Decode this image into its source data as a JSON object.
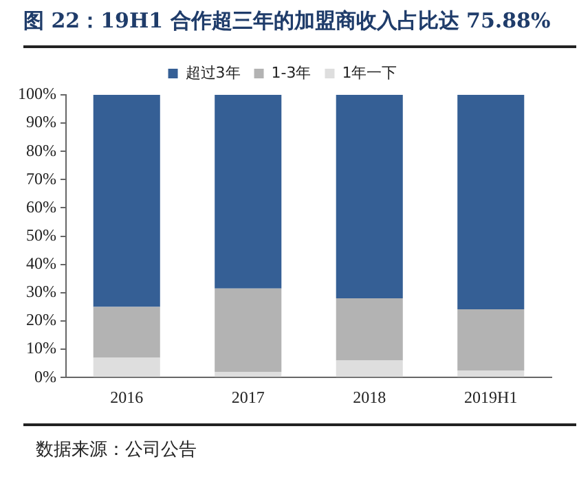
{
  "chart_data": {
    "type": "bar",
    "stacked": true,
    "title": "图 22：19H1 合作超三年的加盟商收入占比达 75.88%",
    "categories": [
      "2016",
      "2017",
      "2018",
      "2019H1"
    ],
    "series": [
      {
        "name": "1年一下",
        "color": "#dedede",
        "values": [
          7,
          2,
          6,
          2.5
        ]
      },
      {
        "name": "1-3年",
        "color": "#b3b3b3",
        "values": [
          18,
          29.5,
          22,
          21.62
        ]
      },
      {
        "name": "超过3年",
        "color": "#355f95",
        "values": [
          75,
          68.5,
          72,
          75.88
        ]
      }
    ],
    "ylim": [
      0,
      100
    ],
    "yticks": [
      {
        "value": 0,
        "label": "0%"
      },
      {
        "value": 10,
        "label": "10%"
      },
      {
        "value": 20,
        "label": "20%"
      },
      {
        "value": 30,
        "label": "30%"
      },
      {
        "value": 40,
        "label": "40%"
      },
      {
        "value": 50,
        "label": "50%"
      },
      {
        "value": 60,
        "label": "60%"
      },
      {
        "value": 70,
        "label": "70%"
      },
      {
        "value": 80,
        "label": "80%"
      },
      {
        "value": 90,
        "label": "90%"
      },
      {
        "value": 100,
        "label": "100%"
      }
    ],
    "grid": false,
    "legend": "top",
    "annotations": [
      "数据来源：公司公告"
    ]
  }
}
